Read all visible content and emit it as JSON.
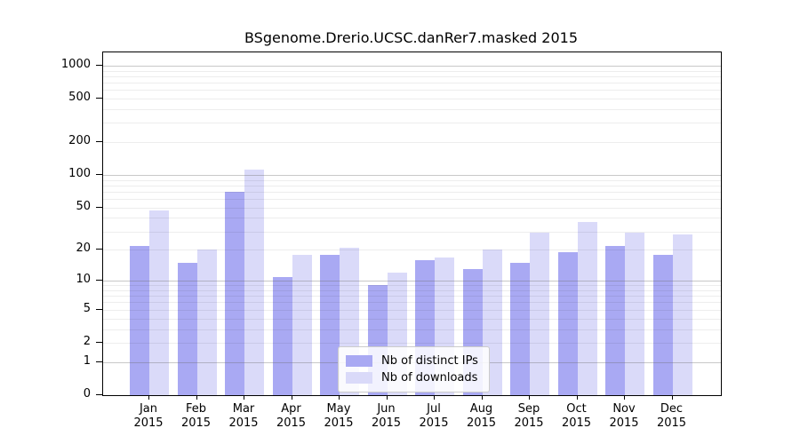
{
  "chart_data": {
    "type": "bar",
    "title": "BSgenome.Drerio.UCSC.danRer7.masked 2015",
    "year": "2015",
    "categories": [
      "Jan",
      "Feb",
      "Mar",
      "Apr",
      "May",
      "Jun",
      "Jul",
      "Aug",
      "Sep",
      "Oct",
      "Nov",
      "Dec"
    ],
    "series": [
      {
        "name": "Nb of distinct IPs",
        "color": "#a9a9f3",
        "values": [
          22,
          15,
          70,
          11,
          18,
          9,
          16,
          13,
          15,
          19,
          22,
          18
        ]
      },
      {
        "name": "Nb of downloads",
        "color": "#dadaf9",
        "values": [
          47,
          20,
          112,
          18,
          21,
          12,
          17,
          20,
          29,
          37,
          29,
          28
        ]
      }
    ],
    "yscale": "log1p",
    "y_ticks": [
      0,
      1,
      2,
      5,
      10,
      20,
      50,
      100,
      200,
      500,
      1000
    ],
    "ylim": [
      0,
      1320
    ],
    "grid": true,
    "legend_position": "bottom-center",
    "colors": {
      "major_grid": "#c9c9c9",
      "minor_grid": "#ececec",
      "axis": "#000000",
      "background": "#ffffff"
    }
  }
}
